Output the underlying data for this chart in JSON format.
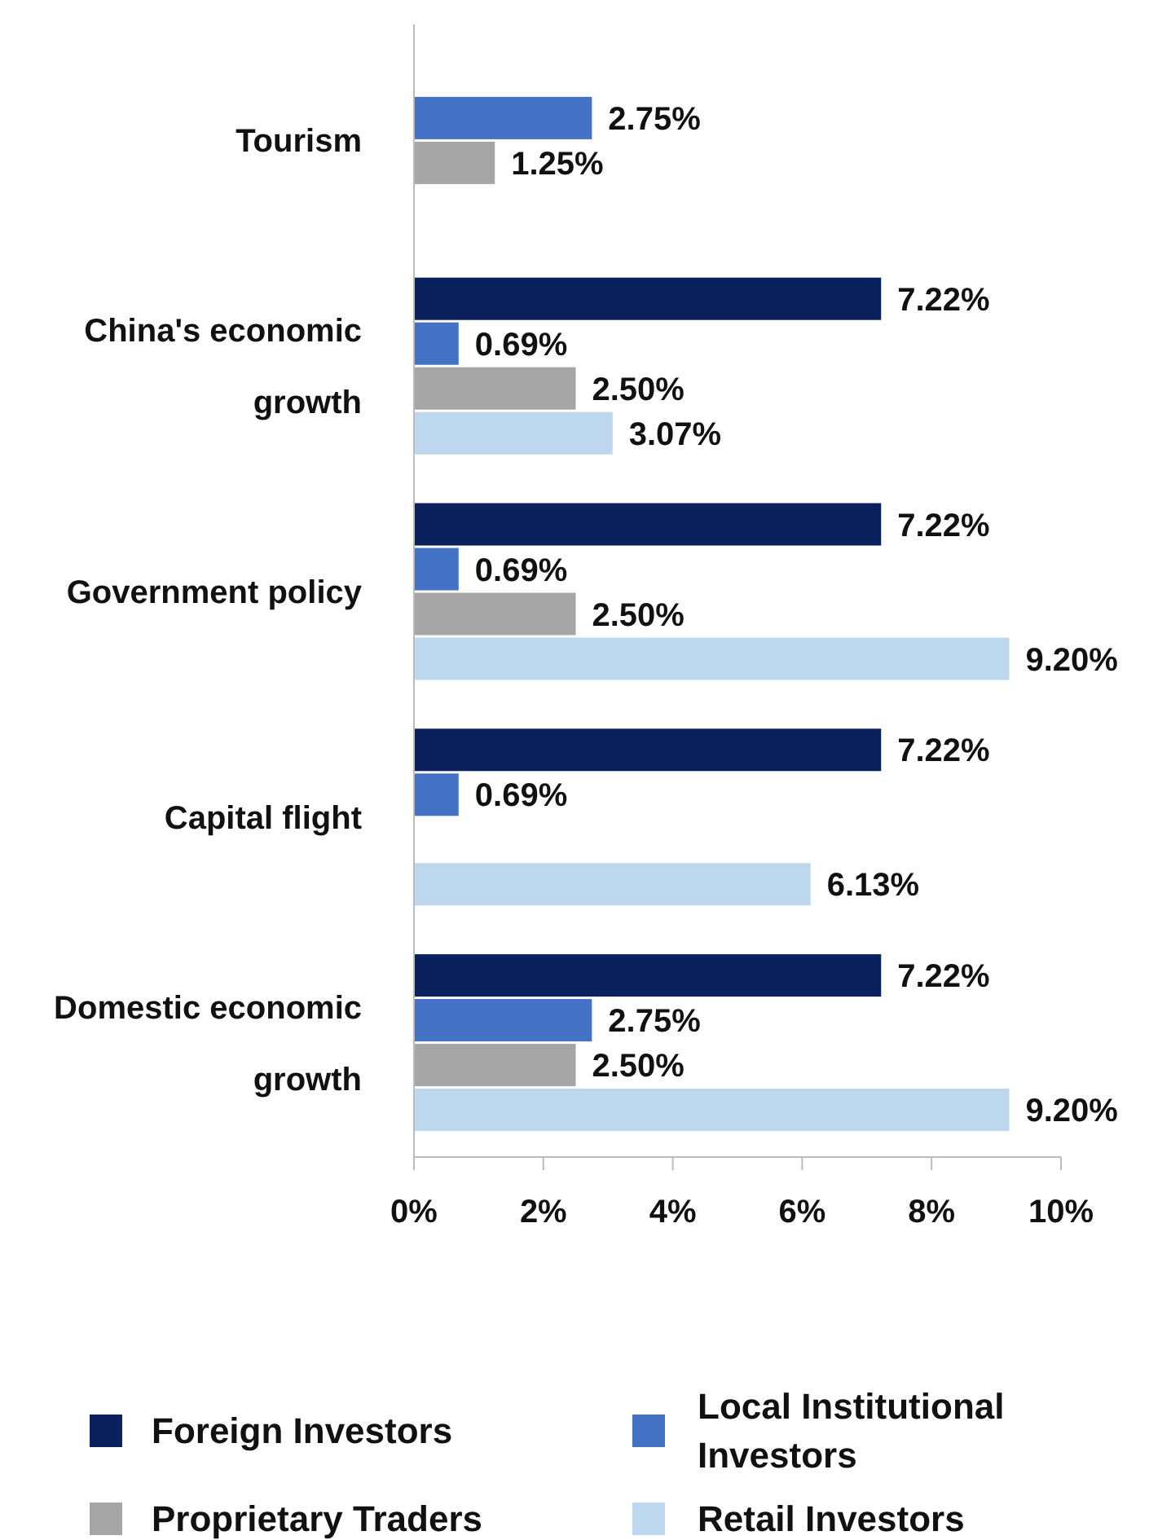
{
  "chart_data": {
    "type": "bar",
    "orientation": "horizontal",
    "categories": [
      "Tourism",
      "China's economic growth",
      "Government policy",
      "Capital flight",
      "Domestic economic growth"
    ],
    "series": [
      {
        "name": "Foreign Investors",
        "color": "#0b215e",
        "values": [
          null,
          7.22,
          7.22,
          7.22,
          7.22
        ],
        "value_labels": [
          null,
          "7.22%",
          "7.22%",
          "7.22%",
          "7.22%"
        ]
      },
      {
        "name": "Local Institutional Investors",
        "color": "#4472c4",
        "values": [
          2.75,
          0.69,
          0.69,
          0.69,
          2.75
        ],
        "value_labels": [
          "2.75%",
          "0.69%",
          "0.69%",
          "0.69%",
          "2.75%"
        ]
      },
      {
        "name": "Proprietary Traders",
        "color": "#a5a5a5",
        "values": [
          1.25,
          2.5,
          2.5,
          null,
          2.5
        ],
        "value_labels": [
          "1.25%",
          "2.50%",
          "2.50%",
          null,
          "2.50%"
        ]
      },
      {
        "name": "Retail Investors",
        "color": "#bdd7ee",
        "values": [
          null,
          3.07,
          9.2,
          6.13,
          9.2
        ],
        "value_labels": [
          null,
          "3.07%",
          "9.20%",
          "6.13%",
          "9.20%"
        ]
      }
    ],
    "xlim": [
      0,
      10
    ],
    "xticks": [
      {
        "value": 0,
        "label": "0%"
      },
      {
        "value": 2,
        "label": "2%"
      },
      {
        "value": 4,
        "label": "4%"
      },
      {
        "value": 6,
        "label": "6%"
      },
      {
        "value": 8,
        "label": "8%"
      },
      {
        "value": 10,
        "label": "10%"
      }
    ],
    "grid": false,
    "legend": "bottom"
  }
}
